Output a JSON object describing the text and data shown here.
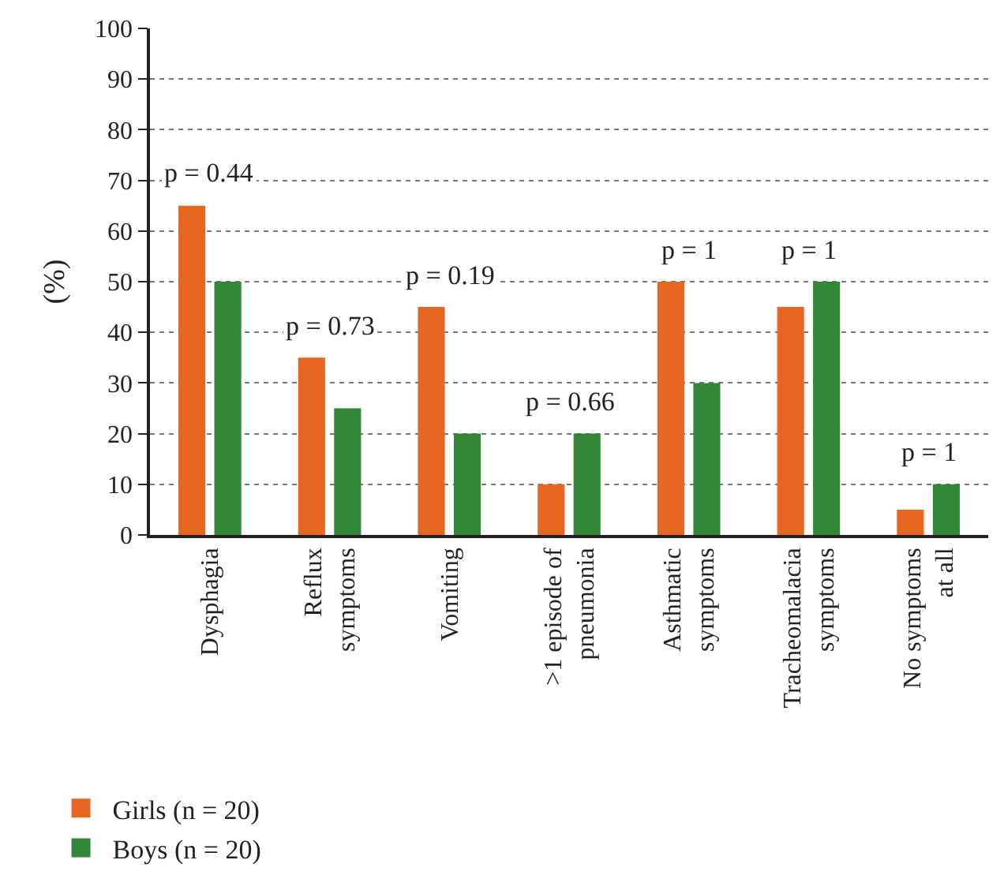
{
  "chart_data": {
    "type": "bar",
    "ylabel": "(%)",
    "categories": [
      "Dysphagia",
      "Reflux\nsymptoms",
      "Vomiting",
      ">1 episode of\npneumonia",
      "Asthmatic\nsymptoms",
      "Tracheomalacia\nsymptoms",
      "No symptoms\nat all"
    ],
    "series": [
      {
        "name": "Girls (n = 20)",
        "color": "#e66721",
        "values": [
          65,
          35,
          45,
          10,
          50,
          45,
          5
        ]
      },
      {
        "name": "Boys (n = 20)",
        "color": "#318736",
        "values": [
          50,
          25,
          20,
          20,
          30,
          50,
          10
        ]
      }
    ],
    "ylim": [
      0,
      100
    ],
    "yticks": [
      0,
      10,
      20,
      30,
      40,
      50,
      60,
      70,
      80,
      90,
      100
    ],
    "grid": "y",
    "legend": "bottom left",
    "annotations": [
      "p = 0.44",
      "p = 0.73",
      "p = 0.19",
      "p = 0.66",
      "p = 1",
      "p = 1",
      "p = 1"
    ]
  }
}
